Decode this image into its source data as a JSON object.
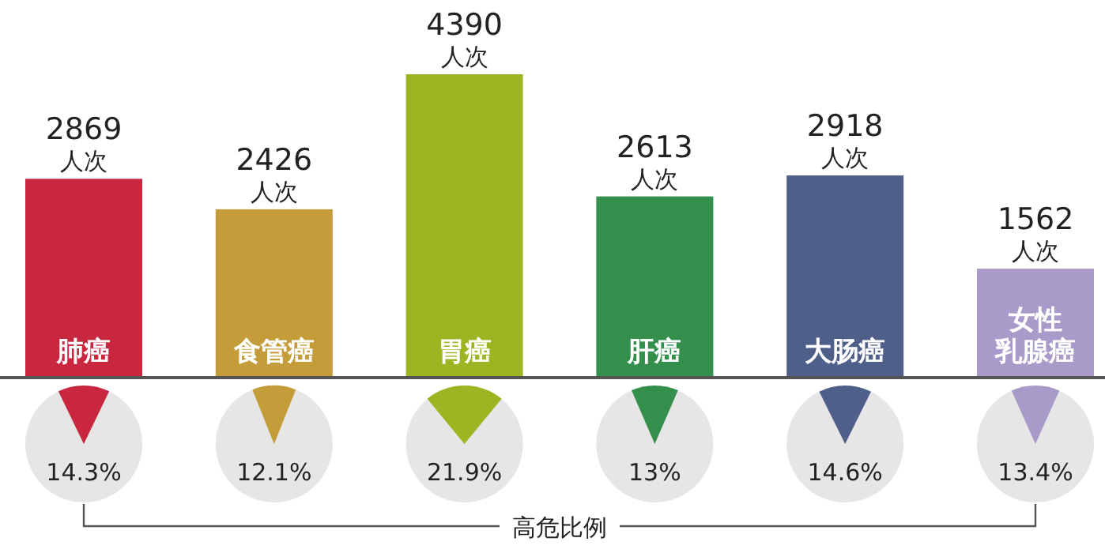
{
  "chart_data": [
    {
      "type": "bar",
      "categories": [
        "肺癌",
        "食管癌",
        "胃癌",
        "肝癌",
        "大肠癌",
        "女性乳腺癌"
      ],
      "values": [
        2869,
        2426,
        4390,
        2613,
        2918,
        1562
      ],
      "colors": [
        "#c8273f",
        "#c49d3a",
        "#9bb523",
        "#358f4c",
        "#4e5f8a",
        "#a89bc9"
      ],
      "value_labels": [
        "2869 人次",
        "2426 人次",
        "4390 人次",
        "2613 人次",
        "2918 人次",
        "1562 人次"
      ]
    },
    {
      "type": "other",
      "categories": [
        null,
        null,
        null,
        null,
        null,
        null
      ],
      "values": [
        14.3,
        12.1,
        21.9,
        13,
        14.6,
        13.4
      ],
      "colors": [
        "#c8273f",
        "#c49d3a",
        "#9bb523",
        "#358f4c",
        "#4e5f8a",
        "#a89bc9"
      ],
      "value_labels": [
        "14.3%",
        "12.1%",
        "21.9%",
        "13%",
        "14.6%",
        "13.4%"
      ],
      "annotations": [
        "高危比例"
      ]
    }
  ]
}
